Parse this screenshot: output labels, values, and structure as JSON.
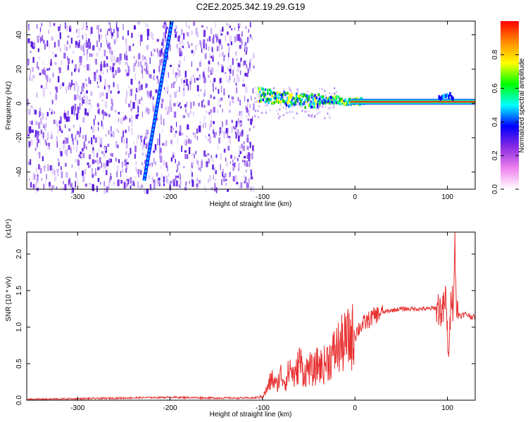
{
  "title": "C2E2.2025.342.19.29.G19",
  "chart_data": [
    {
      "type": "heatmap",
      "xlabel": "Height of straight line (km)",
      "ylabel": "Frequency (Hz)",
      "xlim": [
        -355,
        130
      ],
      "ylim": [
        -50,
        48
      ],
      "xticks": [
        -300,
        -200,
        -100,
        0,
        100
      ],
      "yticks": [
        -40,
        -20,
        0,
        20,
        40
      ],
      "tone_ridge": {
        "x": [
          -105,
          -90,
          -70,
          -50,
          -35,
          -20,
          -10,
          0,
          20,
          60,
          90,
          100,
          110,
          130
        ],
        "y": [
          5,
          4,
          2,
          1,
          2,
          2,
          1,
          1,
          1,
          1,
          1,
          1,
          1,
          1
        ]
      },
      "slant_streak": {
        "x": [
          -228,
          -198
        ],
        "y": [
          -45,
          48
        ]
      },
      "noise_region_x": [
        -355,
        -110
      ],
      "colorbar": {
        "label": "Normalized spectral amplitude",
        "range": [
          0,
          1
        ],
        "ticks": [
          0.0,
          0.2,
          0.4,
          0.6,
          0.8
        ],
        "colors": [
          "#ffffff",
          "#ee82ee",
          "#8a2be2",
          "#0000ff",
          "#00ffff",
          "#00ff00",
          "#ffff00",
          "#ff8c00",
          "#ff0000"
        ]
      }
    },
    {
      "type": "line",
      "xlabel": "Height of straight line (km)",
      "ylabel": "SNR (10 * v/v)",
      "y_multiplier": "(x10⁴)",
      "xlim": [
        -355,
        130
      ],
      "ylim": [
        0,
        2.3
      ],
      "xticks": [
        -300,
        -200,
        -100,
        0,
        100
      ],
      "yticks": [
        0.0,
        0.5,
        1.0,
        1.5,
        2.0
      ],
      "line_color": "#e83030",
      "series": [
        {
          "x": [
            -355,
            -300,
            -250,
            -200,
            -150,
            -110,
            -100,
            -95,
            -90,
            -85,
            -80,
            -75,
            -70,
            -65,
            -60,
            -55,
            -50,
            -45,
            -40,
            -35,
            -30,
            -25,
            -20,
            -15,
            -10,
            -5,
            0,
            5,
            10,
            15,
            20,
            25,
            30,
            40,
            50,
            60,
            70,
            80,
            90,
            95,
            98,
            100,
            102,
            104,
            106,
            108,
            110,
            115,
            120,
            125,
            130
          ],
          "y": [
            0.01,
            0.02,
            0.03,
            0.04,
            0.03,
            0.03,
            0.05,
            0.15,
            0.3,
            0.2,
            0.35,
            0.25,
            0.45,
            0.3,
            0.55,
            0.35,
            0.45,
            0.38,
            0.5,
            0.45,
            0.55,
            0.6,
            0.7,
            0.75,
            0.8,
            0.85,
            0.9,
            1.0,
            1.05,
            1.1,
            1.15,
            1.18,
            1.2,
            1.23,
            1.25,
            1.25,
            1.25,
            1.25,
            1.27,
            1.2,
            1.4,
            0.9,
            0.6,
            1.55,
            1.3,
            2.2,
            1.2,
            1.16,
            1.18,
            1.15,
            1.13
          ]
        }
      ]
    }
  ]
}
